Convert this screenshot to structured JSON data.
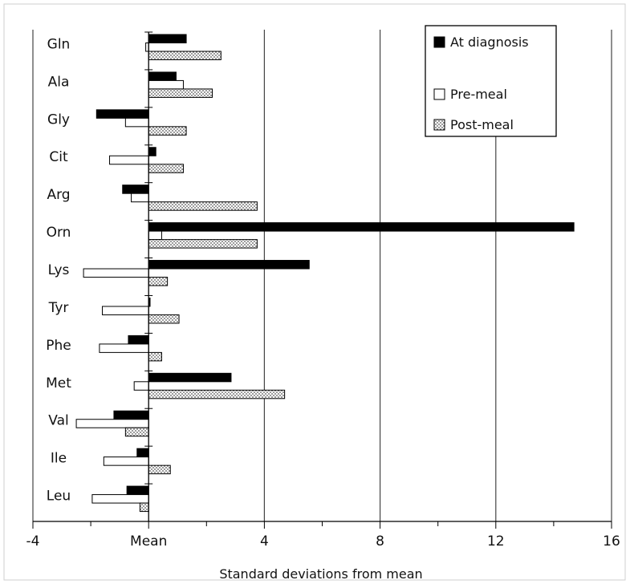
{
  "colors": {
    "at_diagnosis": "#000000",
    "pre_meal": "#ffffff",
    "post_meal_dots": "#555555",
    "grid": "#444444",
    "frame": "#cfcfcf"
  },
  "chart_data": {
    "type": "bar",
    "orientation": "horizontal",
    "categories": [
      "Gln",
      "Ala",
      "Gly",
      "Cit",
      "Arg",
      "Orn",
      "Lys",
      "Tyr",
      "Phe",
      "Met",
      "Val",
      "Ile",
      "Leu"
    ],
    "series": [
      {
        "name": "At diagnosis",
        "values": [
          1.3,
          0.95,
          -1.8,
          0.25,
          -0.9,
          14.7,
          5.55,
          0.05,
          -0.7,
          2.85,
          -1.2,
          -0.4,
          -0.75
        ]
      },
      {
        "name": "Pre-meal",
        "values": [
          -0.1,
          1.2,
          -0.8,
          -1.35,
          -0.6,
          0.45,
          -2.25,
          -1.6,
          -1.7,
          -0.5,
          -2.5,
          -1.55,
          -1.95
        ]
      },
      {
        "name": "Post-meal",
        "values": [
          2.5,
          2.2,
          1.3,
          1.2,
          3.75,
          3.75,
          0.65,
          1.05,
          0.45,
          4.7,
          -0.8,
          0.75,
          -0.3
        ]
      }
    ],
    "xlim": [
      -4,
      16
    ],
    "xticks": [
      -4,
      0,
      4,
      8,
      12,
      16
    ],
    "xtick_labels": [
      "-4",
      "Mean",
      "4",
      "8",
      "12",
      "16"
    ],
    "xlabel": "Standard deviations from mean",
    "ylabel": "",
    "title": "",
    "grid": "vertical",
    "legend_position": "top-right"
  }
}
